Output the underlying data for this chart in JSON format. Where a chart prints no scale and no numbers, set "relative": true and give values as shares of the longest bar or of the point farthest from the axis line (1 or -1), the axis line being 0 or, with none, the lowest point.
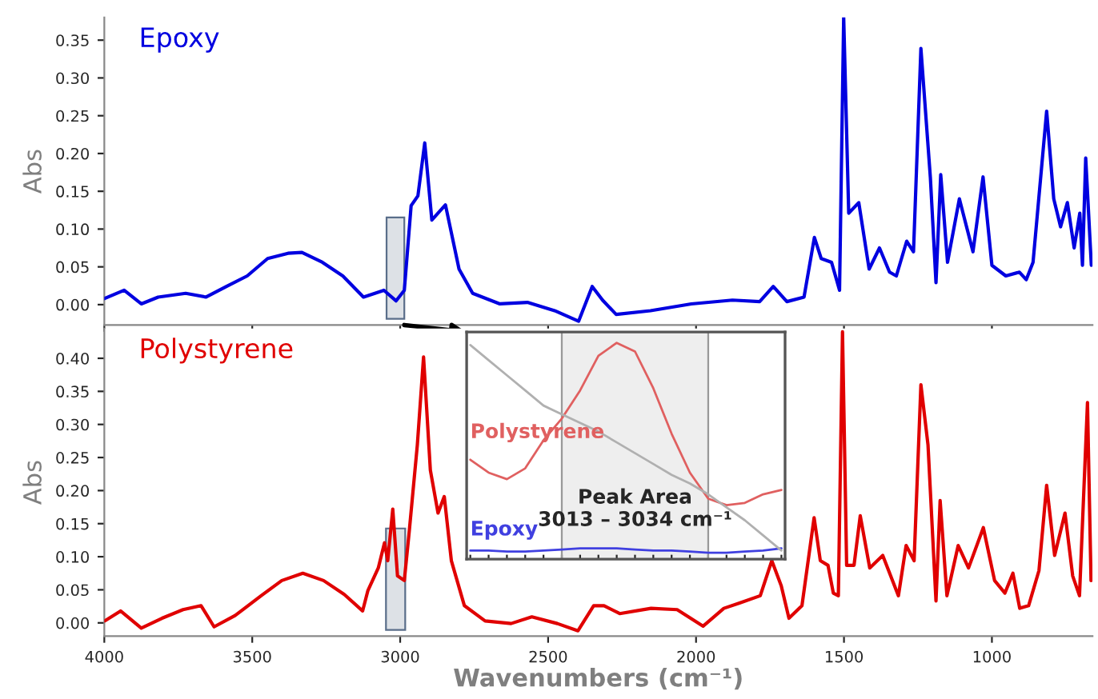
{
  "chart_data": [
    {
      "type": "line",
      "ylabel": "Abs",
      "xlim": [
        4000,
        660
      ],
      "ylim": [
        -0.027,
        0.38
      ],
      "tick_labels": "y",
      "yticks": [
        {
          "value": 0,
          "label": "0.00"
        },
        {
          "value": 0.05,
          "label": "0.05"
        },
        {
          "value": 0.1,
          "label": "0.10"
        },
        {
          "value": 0.15,
          "label": "0.15"
        },
        {
          "value": 0.2,
          "label": "0.20"
        },
        {
          "value": 0.25,
          "label": "0.25"
        },
        {
          "value": 0.3,
          "label": "0.30"
        },
        {
          "value": 0.35,
          "label": "0.35"
        }
      ],
      "x": [
        4000,
        3933,
        3875,
        3818,
        3725,
        3656,
        3587,
        3517,
        3448,
        3379,
        3332,
        3263,
        3194,
        3124,
        3055,
        3014,
        2986,
        2963,
        2940,
        2917,
        2893,
        2847,
        2801,
        2755,
        2663,
        2570,
        2478,
        2397,
        2351,
        2316,
        2270,
        2154,
        2016,
        1877,
        1785,
        1739,
        1693,
        1635,
        1600,
        1577,
        1542,
        1515,
        1501,
        1484,
        1450,
        1415,
        1380,
        1346,
        1323,
        1288,
        1265,
        1240,
        1208,
        1189,
        1173,
        1150,
        1110,
        1064,
        1030,
        1000,
        953,
        907,
        884,
        861,
        815,
        791,
        768,
        745,
        722,
        703,
        694,
        683,
        664
      ],
      "series": [
        {
          "name": "Epoxy",
          "color": "#0000e0",
          "values": [
            0.008,
            0.019,
            0.001,
            0.01,
            0.015,
            0.01,
            0.024,
            0.038,
            0.061,
            0.068,
            0.069,
            0.056,
            0.038,
            0.01,
            0.019,
            0.005,
            0.019,
            0.131,
            0.144,
            0.214,
            0.112,
            0.132,
            0.047,
            0.015,
            0.001,
            0.003,
            -0.008,
            -0.022,
            0.024,
            0.006,
            -0.013,
            -0.008,
            0.001,
            0.006,
            0.004,
            0.024,
            0.004,
            0.01,
            0.089,
            0.061,
            0.056,
            0.019,
            0.38,
            0.121,
            0.135,
            0.047,
            0.075,
            0.043,
            0.038,
            0.084,
            0.07,
            0.339,
            0.168,
            0.029,
            0.172,
            0.056,
            0.14,
            0.07,
            0.169,
            0.052,
            0.038,
            0.043,
            0.033,
            0.056,
            0.256,
            0.14,
            0.103,
            0.135,
            0.075,
            0.121,
            0.052,
            0.194,
            0.052
          ]
        }
      ],
      "bands": [
        {
          "axis": "x",
          "from": 3046,
          "to": 2986,
          "color": "#dde1e6"
        }
      ]
    },
    {
      "type": "line",
      "ylabel": "Abs",
      "xlabel": "Wavenumbers (cm⁻¹)",
      "xlim": [
        4000,
        660
      ],
      "ylim": [
        -0.02,
        0.445
      ],
      "xticks": [
        4000,
        3500,
        3000,
        2500,
        2000,
        1500,
        1000
      ],
      "yticks": [
        {
          "value": 0,
          "label": "0.00"
        },
        {
          "value": 0.05,
          "label": "0.05"
        },
        {
          "value": 0.1,
          "label": "0.10"
        },
        {
          "value": 0.15,
          "label": "0.15"
        },
        {
          "value": 0.2,
          "label": "0.20"
        },
        {
          "value": 0.25,
          "label": "0.25"
        },
        {
          "value": 0.3,
          "label": "0.30"
        },
        {
          "value": 0.35,
          "label": "0.35"
        },
        {
          "value": 0.4,
          "label": "0.40"
        }
      ],
      "x": [
        3998,
        3945,
        3875,
        3805,
        3734,
        3673,
        3629,
        3558,
        3470,
        3400,
        3329,
        3259,
        3189,
        3127,
        3109,
        3074,
        3053,
        3042,
        3025,
        3009,
        2986,
        2969,
        2942,
        2921,
        2898,
        2872,
        2851,
        2827,
        2783,
        2713,
        2625,
        2555,
        2469,
        2399,
        2346,
        2311,
        2258,
        2152,
        2064,
        1976,
        1906,
        1853,
        1783,
        1744,
        1712,
        1686,
        1642,
        1601,
        1580,
        1554,
        1536,
        1519,
        1505,
        1491,
        1466,
        1445,
        1413,
        1369,
        1316,
        1290,
        1263,
        1240,
        1216,
        1189,
        1175,
        1152,
        1114,
        1079,
        1029,
        991,
        956,
        929,
        906,
        876,
        841,
        815,
        788,
        753,
        727,
        704,
        677,
        665
      ],
      "series": [
        {
          "name": "Polystyrene",
          "color": "#e00000",
          "values": [
            0.003,
            0.018,
            -0.008,
            0.007,
            0.02,
            0.026,
            -0.006,
            0.011,
            0.041,
            0.064,
            0.075,
            0.064,
            0.043,
            0.018,
            0.049,
            0.083,
            0.121,
            0.094,
            0.172,
            0.071,
            0.064,
            0.14,
            0.269,
            0.402,
            0.231,
            0.166,
            0.191,
            0.094,
            0.026,
            0.003,
            -0.001,
            0.009,
            -0.001,
            -0.012,
            0.026,
            0.026,
            0.014,
            0.022,
            0.02,
            -0.005,
            0.022,
            0.03,
            0.041,
            0.094,
            0.056,
            0.007,
            0.026,
            0.159,
            0.094,
            0.087,
            0.045,
            0.041,
            0.44,
            0.087,
            0.087,
            0.162,
            0.083,
            0.102,
            0.041,
            0.117,
            0.094,
            0.36,
            0.269,
            0.033,
            0.185,
            0.041,
            0.117,
            0.083,
            0.144,
            0.064,
            0.045,
            0.075,
            0.022,
            0.026,
            0.079,
            0.208,
            0.102,
            0.166,
            0.071,
            0.041,
            0.333,
            0.064
          ]
        }
      ],
      "bands": [
        {
          "axis": "x",
          "from": 3048,
          "to": 2983,
          "color": "#dde1e6"
        }
      ]
    },
    {
      "type": "line",
      "relative": true,
      "categories": [
        null,
        null,
        null,
        null,
        null,
        null,
        null,
        null,
        null,
        null,
        null,
        null,
        null,
        null,
        null,
        null,
        null,
        null
      ],
      "series": [
        {
          "name": "Polystyrene",
          "color": "#e06060",
          "values": [
            0.46,
            0.4,
            0.37,
            0.42,
            0.55,
            0.65,
            0.78,
            0.94,
            1.0,
            0.96,
            0.79,
            0.58,
            0.4,
            0.28,
            0.25,
            0.26,
            0.3,
            0.32
          ]
        },
        {
          "name": "Epoxy",
          "color": "#4040e0",
          "values": [
            0.04,
            0.04,
            0.035,
            0.035,
            0.04,
            0.045,
            0.05,
            0.05,
            0.05,
            0.045,
            0.04,
            0.04,
            0.035,
            0.03,
            0.03,
            0.035,
            0.04,
            0.05
          ]
        },
        {
          "color": "#b0b0b0",
          "values": [
            0.99,
            0.92,
            0.85,
            0.78,
            0.71,
            0.67,
            0.63,
            0.59,
            0.54,
            0.49,
            0.44,
            0.39,
            0.35,
            0.3,
            0.24,
            0.18,
            0.11,
            0.04
          ]
        }
      ],
      "annotations": [
        "Peak Area\n3013 – 3034 cm⁻¹"
      ]
    }
  ]
}
